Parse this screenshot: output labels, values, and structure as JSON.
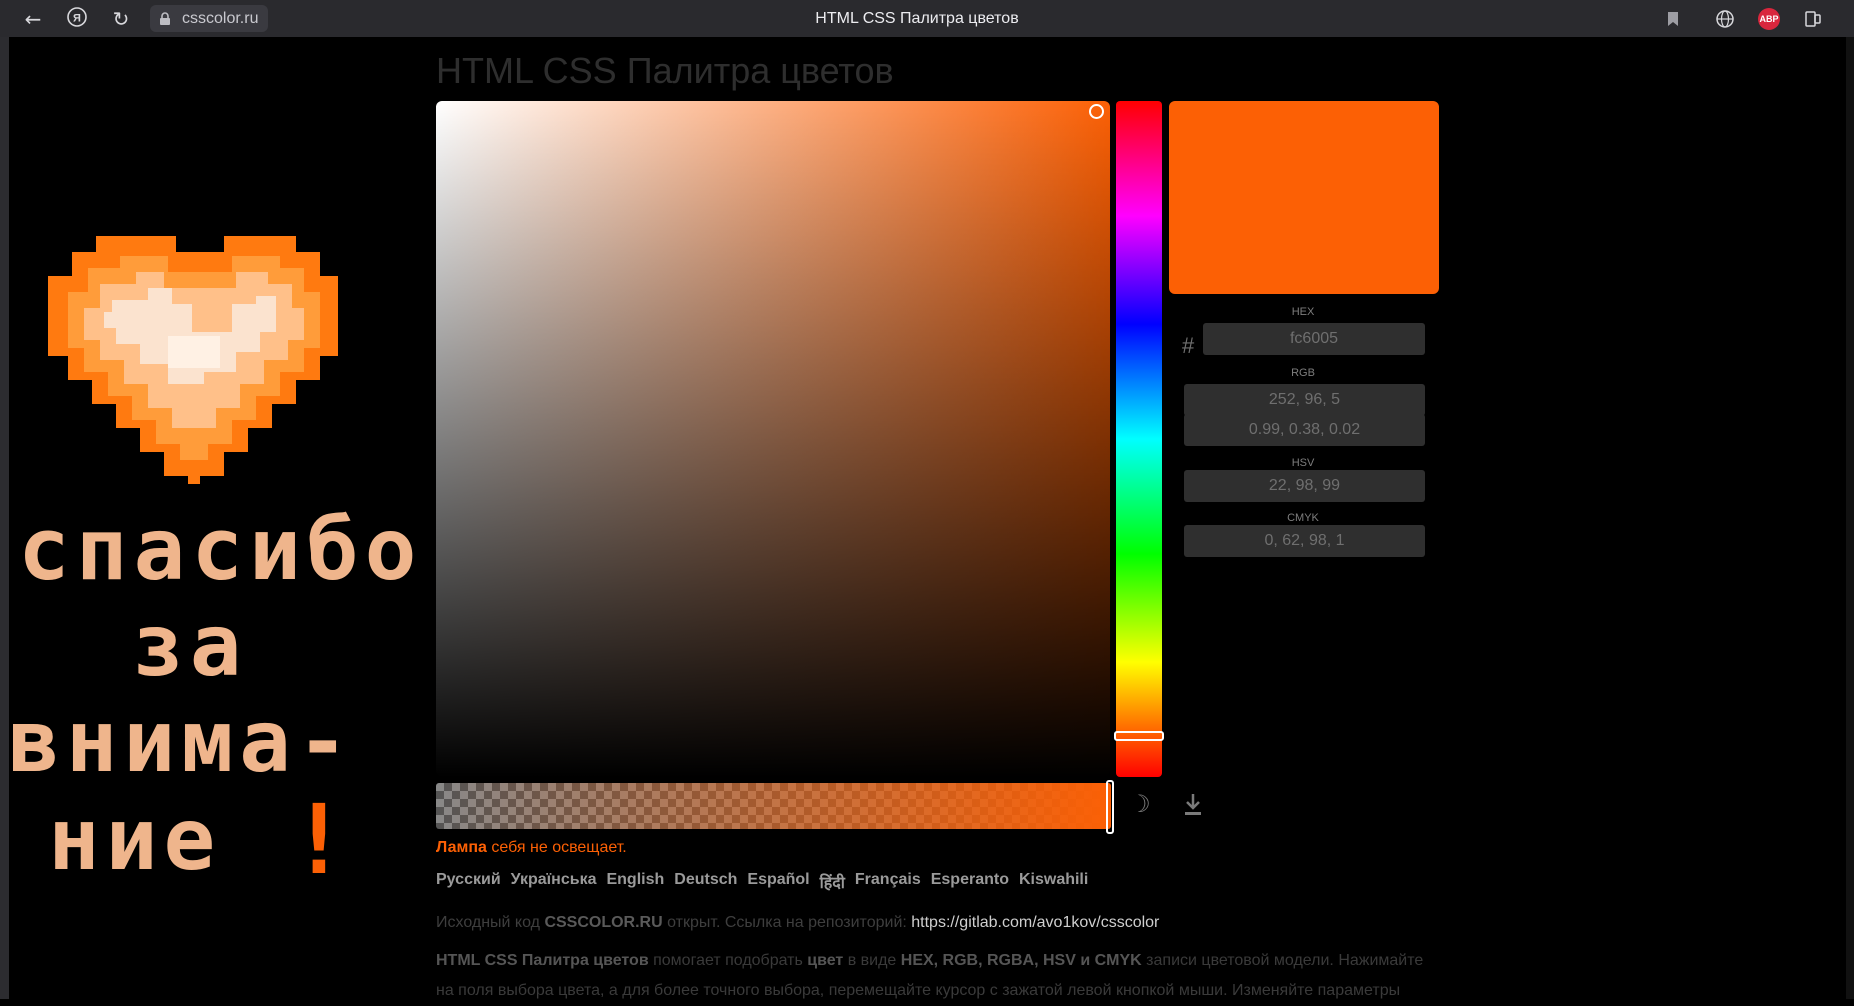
{
  "browser": {
    "url": "csscolor.ru",
    "tab_title": "HTML CSS Палитра цветов",
    "extension_badge": "ABP"
  },
  "page": {
    "heading": "HTML CSS Палитра цветов",
    "current_color": "#fc6005",
    "fields": {
      "hex_label": "HEX",
      "hash_symbol": "#",
      "hex_value": "fc6005",
      "rgb_label": "RGB",
      "rgb_value": "252, 96, 5",
      "rgb_float_value": "0.99, 0.38, 0.02",
      "hsv_label": "HSV",
      "hsv_value": "22, 98, 99",
      "cmyk_label": "CMYK",
      "cmyk_value": "0, 62, 98, 1"
    },
    "lamp": {
      "bold": "Лампа",
      "text": " себя не освещает."
    },
    "languages": [
      "Русский",
      "Українська",
      "English",
      "Deutsch",
      "Español",
      "हिंदी",
      "Français",
      "Esperanto",
      "Kiswahili"
    ],
    "source": {
      "prefix": "Исходный код ",
      "site": "CSSCOLOR.RU",
      "middle": " открыт. Ссылка на репозиторий: ",
      "link": "https://gitlab.com/avo1kov/csscolor"
    },
    "description": {
      "b1": "HTML CSS Палитра цветов",
      "t1": " помогает подобрать ",
      "b2": "цвет",
      "t2": " в виде ",
      "b3": "HEX, RGB, RGBA, HSV и CMYK",
      "t3": " записи цветовой модели. Нажимайте на поля выбора цвета, а для более точного выбора, перемещайте курсор с зажатой левой кнопкой мыши. Изменяйте параметры"
    }
  },
  "overlay": {
    "line1": "спасибо",
    "line2": "за",
    "line3": "внима-",
    "line4": "ние",
    "exclaim": "!"
  }
}
